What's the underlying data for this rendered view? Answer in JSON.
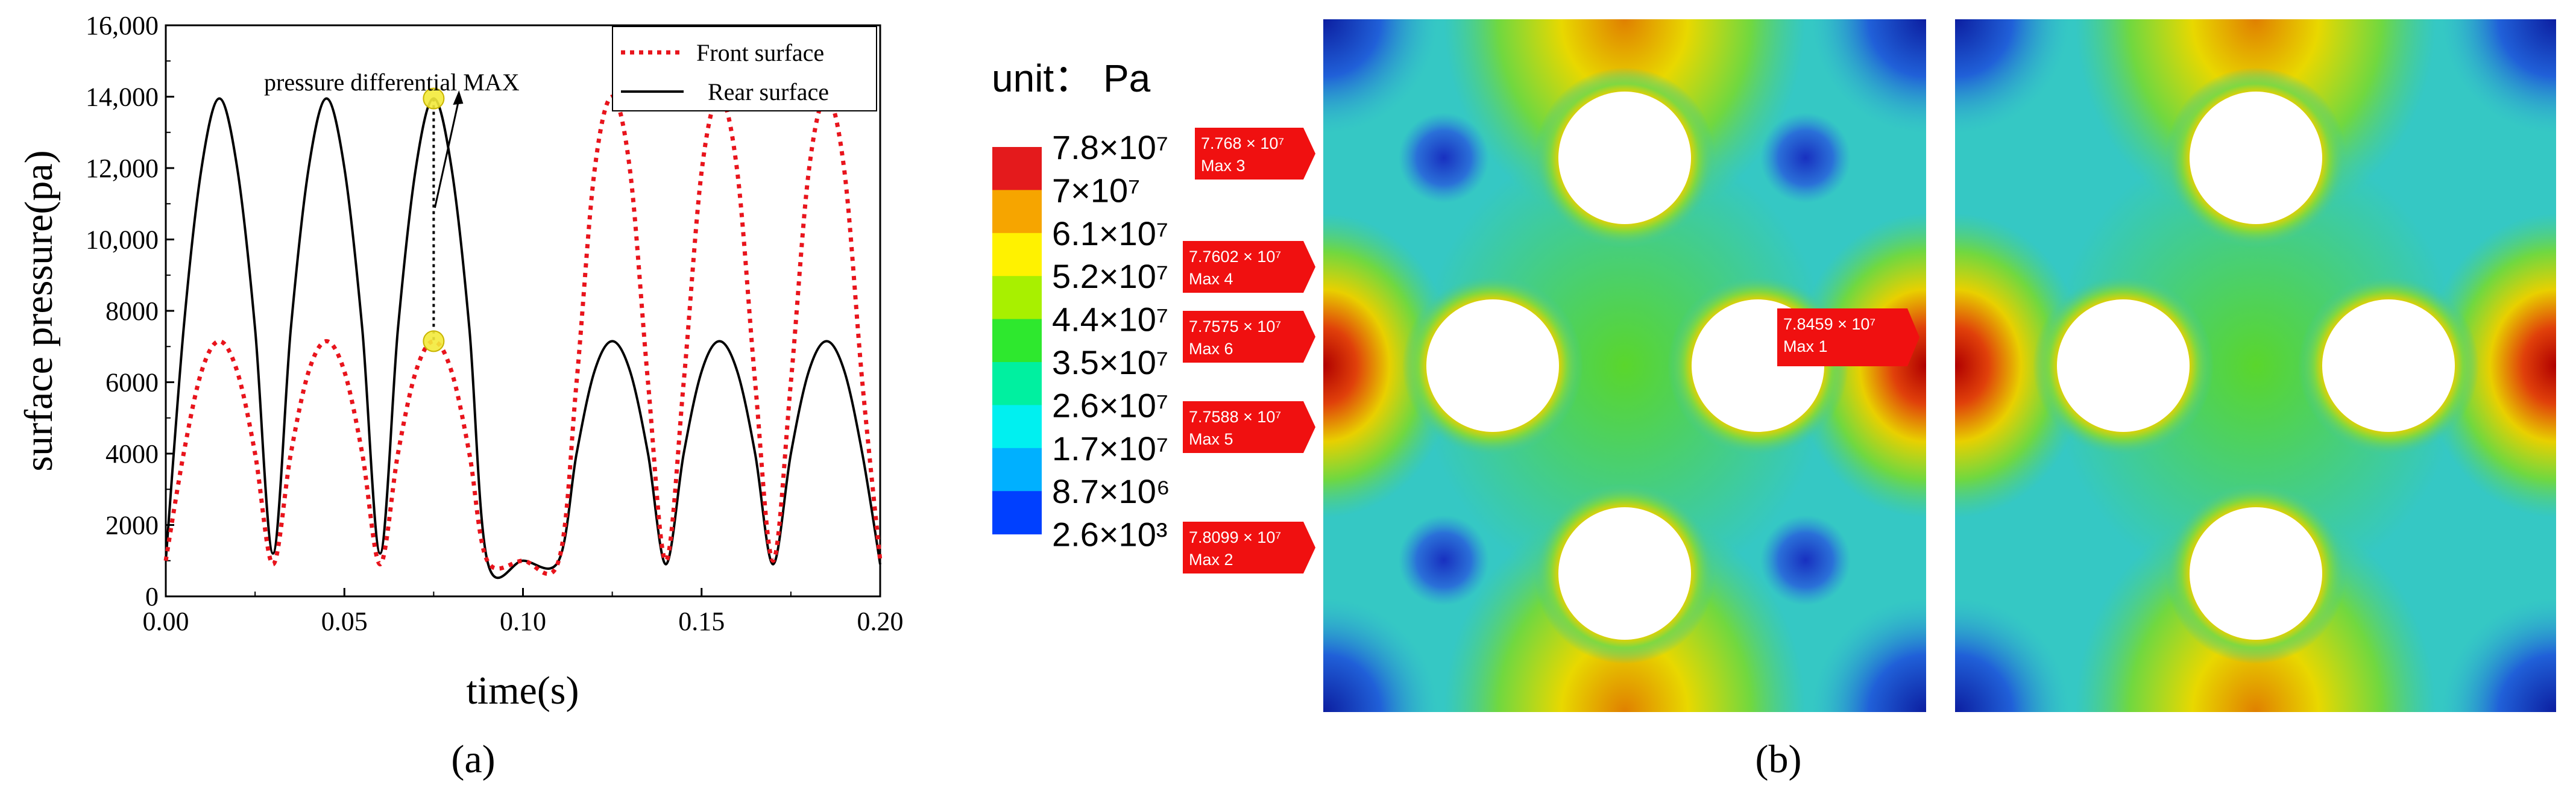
{
  "chart_data": [
    {
      "type": "line",
      "title": "",
      "xlabel": "time(s)",
      "ylabel": "surface pressure(pa)",
      "xlim": [
        0,
        0.2
      ],
      "ylim": [
        0,
        16000
      ],
      "x_ticks": [
        "0.00",
        "0.05",
        "0.10",
        "0.15",
        "0.20"
      ],
      "y_ticks": [
        "0",
        "2000",
        "4000",
        "6000",
        "8000",
        "10,000",
        "12,000",
        "14,000",
        "16,000"
      ],
      "legend_position": "top-right",
      "grid": false,
      "series": [
        {
          "name": "Front surface",
          "style": "dotted",
          "color": "#e8141c",
          "x": [
            0,
            0.005,
            0.01,
            0.015,
            0.02,
            0.025,
            0.03,
            0.035,
            0.04,
            0.045,
            0.05,
            0.055,
            0.06,
            0.065,
            0.07,
            0.075,
            0.08,
            0.085,
            0.09,
            0.1,
            0.11,
            0.115,
            0.12,
            0.125,
            0.13,
            0.135,
            0.14,
            0.145,
            0.15,
            0.155,
            0.16,
            0.165,
            0.17,
            0.175,
            0.18,
            0.185,
            0.19,
            0.195,
            0.2
          ],
          "y": [
            1000,
            4000,
            6300,
            7150,
            6300,
            4000,
            900,
            4000,
            6300,
            7150,
            6300,
            4000,
            900,
            4000,
            6300,
            7150,
            6300,
            4000,
            1000,
            1000,
            1000,
            6000,
            11900,
            14000,
            11900,
            6000,
            1000,
            6000,
            11900,
            14000,
            11900,
            6000,
            1000,
            6000,
            11900,
            14000,
            11900,
            6000,
            1000
          ]
        },
        {
          "name": "Rear surface",
          "style": "solid",
          "color": "#000000",
          "x": [
            0,
            0.005,
            0.01,
            0.015,
            0.02,
            0.025,
            0.03,
            0.035,
            0.04,
            0.045,
            0.05,
            0.055,
            0.06,
            0.065,
            0.07,
            0.075,
            0.08,
            0.085,
            0.09,
            0.1,
            0.11,
            0.115,
            0.12,
            0.125,
            0.13,
            0.135,
            0.14,
            0.145,
            0.15,
            0.155,
            0.16,
            0.165,
            0.17,
            0.175,
            0.18,
            0.185,
            0.19,
            0.195,
            0.2
          ],
          "y": [
            1000,
            7500,
            12000,
            13950,
            12000,
            7500,
            1200,
            7500,
            12000,
            13950,
            12000,
            7500,
            1200,
            7500,
            12000,
            13950,
            12000,
            7500,
            1000,
            1000,
            1000,
            4000,
            6300,
            7150,
            6300,
            4000,
            900,
            4000,
            6300,
            7150,
            6300,
            4000,
            900,
            4000,
            6300,
            7150,
            6300,
            4000,
            900
          ]
        }
      ],
      "annotations": [
        {
          "text": "pressure differential MAX",
          "x": 0.075,
          "y_top": 13950,
          "y_bottom": 7150
        }
      ]
    },
    {
      "type": "heatmap",
      "title": "",
      "unit_label": "unit： Pa",
      "colorbar": {
        "labels": [
          "7.8×10⁷",
          "7×10⁷",
          "6.1×10⁷",
          "5.2×10⁷",
          "4.4×10⁷",
          "3.5×10⁷",
          "2.6×10⁷",
          "1.7×10⁷",
          "8.7×10⁶",
          "2.6×10³"
        ],
        "colors": [
          "#e41a1c",
          "#f6a500",
          "#fff200",
          "#a8f000",
          "#2ee82e",
          "#00f0a0",
          "#00f0f0",
          "#00b0ff",
          "#0040ff"
        ]
      },
      "max_labels": [
        {
          "value": "7.768 × 10⁷",
          "name": "Max 3"
        },
        {
          "value": "7.7602 × 10⁷",
          "name": "Max 4"
        },
        {
          "value": "7.7575 × 10⁷",
          "name": "Max 6"
        },
        {
          "value": "7.7588 × 10⁷",
          "name": "Max 5"
        },
        {
          "value": "7.8099 × 10⁷",
          "name": "Max 2"
        },
        {
          "value": "7.8459  × 10⁷",
          "name": "Max 1"
        }
      ]
    }
  ],
  "panels": {
    "a": "(a)",
    "b": "(b)"
  },
  "colors": {
    "field_base": "#35c8c4",
    "field_green": "#58d83c",
    "field_yellow": "#e8e000",
    "field_red": "#cc1414",
    "field_blue": "#1a3fd0",
    "tag_red": "#f01010"
  }
}
